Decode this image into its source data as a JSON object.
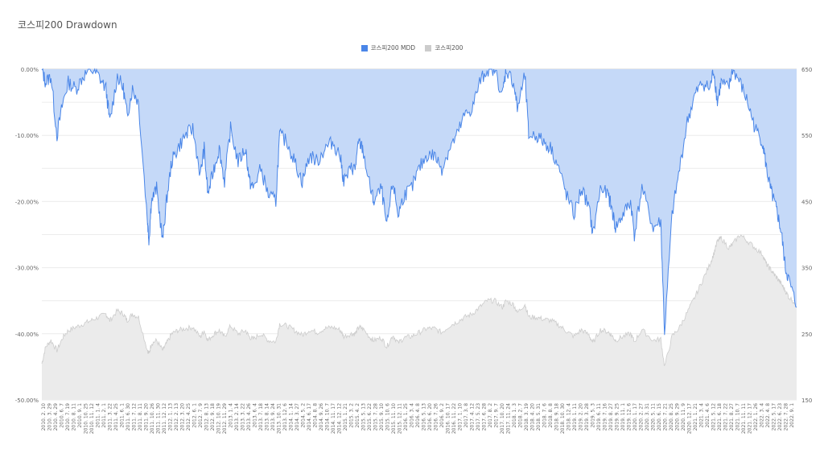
{
  "chart_data": {
    "type": "area",
    "title": "코스피200 Drawdown",
    "y_left": {
      "ticks": [
        "0.00%",
        "-10.00%",
        "-20.00%",
        "-30.00%",
        "-40.00%",
        "-50.00%"
      ],
      "min": -50,
      "max": 0
    },
    "y_right": {
      "ticks": [
        "650",
        "550",
        "450",
        "350",
        "250",
        "150"
      ],
      "min": 150,
      "max": 650
    },
    "legend_placement": "top-center",
    "x_ticks": [
      "2010. 2. 10",
      "2010. 3. 29",
      "2010. 4. 29",
      "2010. 6. 7",
      "2010. 7. 19",
      "2010. 8. 11",
      "2010. 9. 1",
      "2010. 10. 25",
      "2010. 11. 12",
      "2011. 1. 4",
      "2011. 2. 1",
      "2011. 3. 22",
      "2011. 4. 25",
      "2011. 6. 1",
      "2011. 6. 30",
      "2011. 7. 12",
      "2011. 8. 11",
      "2011. 9. 20",
      "2011. 10. 26",
      "2011. 11. 30",
      "2011. 12. 12",
      "2012. 1. 13",
      "2012. 2. 13",
      "2012. 3. 20",
      "2012. 4. 25",
      "2012. 6. 1",
      "2012. 7. 9",
      "2012. 8. 13",
      "2012. 9. 18",
      "2012. 10. 19",
      "2012. 11. 29",
      "2013. 1. 4",
      "2013. 2. 14",
      "2013. 3. 22",
      "2013. 4. 26",
      "2013. 6. 4",
      "2013. 7. 18",
      "2013. 8. 14",
      "2013. 9. 24",
      "2013. 10. 31",
      "2013. 12. 6",
      "2014. 1. 14",
      "2014. 3. 27",
      "2014. 5. 2",
      "2014. 6. 17",
      "2014. 8. 8",
      "2014. 9. 26",
      "2014. 10. 7",
      "2014. 11. 17",
      "2014. 12. 12",
      "2015. 1. 21",
      "2015. 3. 2",
      "2015. 4. 2",
      "2015. 5. 13",
      "2015. 6. 22",
      "2015. 7. 28",
      "2015. 9. 10",
      "2015. 10. 6",
      "2015. 11. 10",
      "2015. 12. 11",
      "2016. 1. 25",
      "2016. 3. 4",
      "2016. 4. 8",
      "2016. 5. 13",
      "2016. 6. 20",
      "2016. 7. 26",
      "2016. 9. 2",
      "2016. 10. 17",
      "2016. 11. 22",
      "2017. 1. 10",
      "2017. 3. 8",
      "2017. 4. 12",
      "2017. 5. 23",
      "2017. 6. 28",
      "2017. 8. 2",
      "2017. 9. 7",
      "2017. 10. 20",
      "2017. 11. 24",
      "2018. 1. 3",
      "2018. 2. 7",
      "2018. 3. 19",
      "2018. 4. 20",
      "2018. 5. 31",
      "2018. 7. 6",
      "2018. 8. 8",
      "2018. 9. 18",
      "2018. 10. 30",
      "2018. 12. 4",
      "2019. 1. 11",
      "2019. 2. 20",
      "2019. 3. 28",
      "2019. 5. 3",
      "2019. 6. 11",
      "2019. 7. 16",
      "2019. 8. 27",
      "2019. 9. 25",
      "2019. 11. 1",
      "2019. 12. 6",
      "2020. 1. 17",
      "2020. 2. 27",
      "2020. 3. 31",
      "2020. 5. 11",
      "2020. 6. 15",
      "2020. 7. 21",
      "2020. 8. 25",
      "2020. 9. 29",
      "2020. 11. 9",
      "2020. 12. 17",
      "2021. 1. 21",
      "2021. 3. 4",
      "2021. 4. 6",
      "2021. 5. 12",
      "2021. 6. 18",
      "2021. 7. 22",
      "2021. 8. 27",
      "2021. 10. 7",
      "2021. 11. 11",
      "2021. 12. 17",
      "2022. 1. 26",
      "2022. 3. 4",
      "2022. 4. 8",
      "2022. 5. 17",
      "2022. 6. 23",
      "2022. 7. 28",
      "2022. 9. 1"
    ],
    "series": [
      {
        "name": "코스피200 MDD",
        "color": "#4a86e8",
        "fill": "#c5d9f8",
        "axis": "left",
        "x": [
          0,
          0.005,
          0.012,
          0.02,
          0.028,
          0.035,
          0.045,
          0.055,
          0.065,
          0.075,
          0.085,
          0.09,
          0.1,
          0.108,
          0.113,
          0.12,
          0.128,
          0.14,
          0.142,
          0.145,
          0.152,
          0.16,
          0.165,
          0.172,
          0.18,
          0.19,
          0.2,
          0.21,
          0.215,
          0.22,
          0.228,
          0.235,
          0.242,
          0.25,
          0.26,
          0.27,
          0.275,
          0.28,
          0.29,
          0.3,
          0.31,
          0.315,
          0.325,
          0.335,
          0.345,
          0.355,
          0.365,
          0.375,
          0.385,
          0.395,
          0.4,
          0.41,
          0.415,
          0.42,
          0.425,
          0.435,
          0.44,
          0.45,
          0.457,
          0.465,
          0.472,
          0.48,
          0.49,
          0.5,
          0.51,
          0.52,
          0.53,
          0.54,
          0.55,
          0.56,
          0.57,
          0.58,
          0.59,
          0.6,
          0.61,
          0.615,
          0.625,
          0.63,
          0.64,
          0.645,
          0.655,
          0.665,
          0.675,
          0.685,
          0.695,
          0.705,
          0.715,
          0.725,
          0.73,
          0.74,
          0.75,
          0.755,
          0.76,
          0.77,
          0.78,
          0.785,
          0.795,
          0.81,
          0.82,
          0.825,
          0.835,
          0.845,
          0.855,
          0.865,
          0.875,
          0.885,
          0.89,
          0.895,
          0.9,
          0.91,
          0.915,
          0.925,
          0.935,
          0.945,
          0.955,
          0.96,
          0.965,
          0.97,
          0.975,
          0.98,
          0.985,
          0.99,
          1.0
        ],
        "values": [
          0,
          -2,
          -1,
          -10,
          -5,
          -2,
          -3,
          -1,
          0,
          -1,
          -3,
          -8,
          -1,
          -3,
          -7,
          -3,
          -5,
          -23,
          -26,
          -20,
          -18,
          -26,
          -20,
          -14,
          -12,
          -10,
          -9,
          -16,
          -12,
          -19,
          -15,
          -12,
          -17,
          -9,
          -14,
          -12,
          -17,
          -18,
          -15,
          -19,
          -20,
          -10,
          -11,
          -14,
          -17,
          -13,
          -14,
          -12,
          -11,
          -13,
          -17,
          -15,
          -15,
          -11,
          -12,
          -18,
          -20,
          -18,
          -24,
          -17,
          -22,
          -19,
          -18,
          -15,
          -13,
          -13,
          -15,
          -12,
          -10,
          -7,
          -6,
          -2,
          0,
          0,
          -4,
          0,
          -2,
          -6,
          -1,
          -10,
          -10,
          -11,
          -12,
          -15,
          -19,
          -22,
          -18,
          -21,
          -25,
          -18,
          -19,
          -21,
          -24,
          -22,
          -20,
          -25,
          -18,
          -24,
          -23,
          -40,
          -22,
          -15,
          -8,
          -4,
          -2,
          -3,
          0,
          -5,
          -2,
          -3,
          0,
          -2,
          -5,
          -9,
          -11,
          -15,
          -18,
          -20,
          -22,
          -25,
          -30,
          -32,
          -36
        ]
      },
      {
        "name": "코스피200",
        "color": "#cccccc",
        "fill": "#ebebeb",
        "axis": "right",
        "x": [
          0,
          0.005,
          0.012,
          0.02,
          0.028,
          0.035,
          0.045,
          0.055,
          0.065,
          0.075,
          0.085,
          0.09,
          0.1,
          0.108,
          0.113,
          0.12,
          0.128,
          0.14,
          0.142,
          0.145,
          0.152,
          0.16,
          0.165,
          0.172,
          0.18,
          0.19,
          0.2,
          0.21,
          0.215,
          0.22,
          0.228,
          0.235,
          0.242,
          0.25,
          0.26,
          0.27,
          0.275,
          0.28,
          0.29,
          0.3,
          0.31,
          0.315,
          0.325,
          0.335,
          0.345,
          0.355,
          0.365,
          0.375,
          0.385,
          0.395,
          0.4,
          0.41,
          0.415,
          0.42,
          0.425,
          0.435,
          0.44,
          0.45,
          0.457,
          0.465,
          0.472,
          0.48,
          0.49,
          0.5,
          0.51,
          0.52,
          0.53,
          0.54,
          0.55,
          0.56,
          0.57,
          0.58,
          0.59,
          0.6,
          0.61,
          0.615,
          0.625,
          0.63,
          0.64,
          0.645,
          0.655,
          0.665,
          0.675,
          0.685,
          0.695,
          0.705,
          0.715,
          0.725,
          0.73,
          0.74,
          0.75,
          0.755,
          0.76,
          0.77,
          0.78,
          0.785,
          0.795,
          0.81,
          0.82,
          0.825,
          0.835,
          0.845,
          0.855,
          0.865,
          0.875,
          0.885,
          0.89,
          0.895,
          0.9,
          0.91,
          0.915,
          0.925,
          0.935,
          0.945,
          0.955,
          0.96,
          0.965,
          0.97,
          0.975,
          0.98,
          0.985,
          0.99,
          1.0
        ],
        "values": [
          205,
          230,
          240,
          225,
          245,
          255,
          260,
          265,
          270,
          275,
          280,
          270,
          285,
          280,
          270,
          280,
          275,
          225,
          220,
          235,
          240,
          225,
          235,
          250,
          255,
          258,
          260,
          245,
          255,
          240,
          250,
          255,
          245,
          262,
          250,
          255,
          245,
          242,
          250,
          240,
          238,
          265,
          262,
          255,
          248,
          256,
          252,
          258,
          260,
          256,
          246,
          250,
          250,
          260,
          258,
          244,
          240,
          244,
          230,
          248,
          236,
          244,
          246,
          252,
          258,
          258,
          252,
          262,
          268,
          275,
          280,
          290,
          300,
          300,
          290,
          300,
          294,
          282,
          295,
          275,
          275,
          272,
          270,
          263,
          254,
          246,
          256,
          248,
          236,
          256,
          253,
          248,
          240,
          246,
          250,
          238,
          256,
          240,
          242,
          200,
          246,
          260,
          282,
          305,
          330,
          355,
          370,
          390,
          395,
          380,
          385,
          400,
          390,
          380,
          370,
          355,
          348,
          340,
          333,
          325,
          315,
          305,
          295
        ]
      }
    ]
  }
}
